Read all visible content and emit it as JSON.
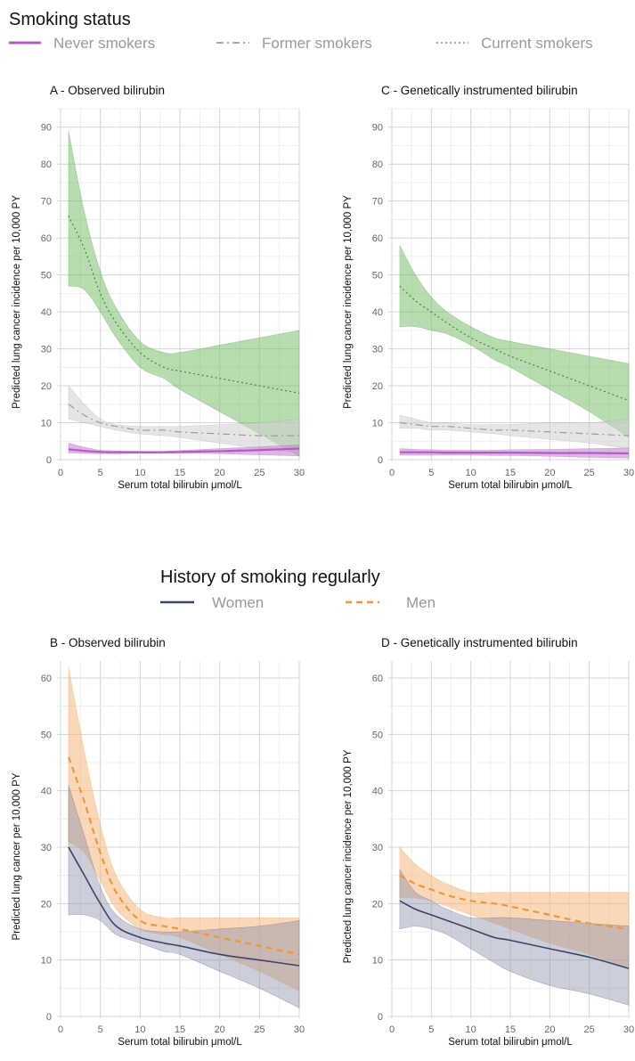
{
  "legend_top": {
    "title": "Smoking status",
    "items": [
      {
        "label": "Never smokers",
        "color": "#b05cc0",
        "dash": "solid"
      },
      {
        "label": "Former smokers",
        "color": "#a8a8a8",
        "dash": "dashdot"
      },
      {
        "label": "Current smokers",
        "color": "#a8a8a8",
        "dash": "dotted"
      }
    ]
  },
  "legend_bottom": {
    "title": "History of smoking regularly",
    "items": [
      {
        "label": "Women",
        "color": "#3d4466",
        "dash": "solid"
      },
      {
        "label": "Men",
        "color": "#f0973a",
        "dash": "dashed"
      }
    ]
  },
  "colors": {
    "never": "#b05cc0",
    "former": "#9a9a9a",
    "current": "#3f8a3a",
    "current_fill": "#7cbf6e",
    "former_fill": "#cfcfcf",
    "never_fill": "#c98fd6",
    "women": "#3d4466",
    "women_fill": "#8d93ad",
    "men": "#f0973a",
    "men_fill": "#f6b77c"
  },
  "chart_data": [
    {
      "type": "line",
      "title": "A - Observed bilirubin",
      "xlabel": "Serum total bilirubin μmol/L",
      "ylabel": "Predicted lung cancer incidence per 10,000 PY",
      "xlim": [
        0,
        30
      ],
      "ylim": [
        0,
        95
      ],
      "xticks": [
        0,
        5,
        10,
        15,
        20,
        25,
        30
      ],
      "yticks": [
        0,
        10,
        20,
        30,
        40,
        50,
        60,
        70,
        80,
        90
      ],
      "grid": true,
      "x": [
        1,
        3,
        5,
        7,
        10,
        13,
        15,
        20,
        25,
        30
      ],
      "series": [
        {
          "name": "Current smokers",
          "dash": "dotted",
          "values": [
            66,
            57,
            45,
            37,
            29,
            25,
            24,
            22,
            20,
            18
          ],
          "lower": [
            47,
            46,
            40,
            33,
            25,
            22,
            19,
            13,
            7,
            1
          ],
          "upper": [
            89,
            67,
            51,
            41,
            32,
            29,
            29,
            31,
            33,
            35
          ]
        },
        {
          "name": "Former smokers",
          "dash": "dashdot",
          "values": [
            15,
            12,
            10,
            9,
            8,
            8,
            7.5,
            7,
            6.5,
            6.5
          ],
          "lower": [
            11,
            10,
            9,
            8,
            7,
            6.5,
            6,
            4.5,
            3,
            2
          ],
          "upper": [
            20,
            15,
            11,
            9.5,
            9,
            9,
            9,
            9.5,
            10,
            11
          ]
        },
        {
          "name": "Never smokers",
          "dash": "solid",
          "values": [
            2.8,
            2.4,
            2.1,
            2.0,
            2.0,
            2.0,
            2.1,
            2.3,
            2.6,
            3.0
          ],
          "lower": [
            1.8,
            1.7,
            1.6,
            1.6,
            1.7,
            1.7,
            1.7,
            1.6,
            1.3,
            1.0
          ],
          "upper": [
            4.5,
            3.4,
            2.6,
            2.4,
            2.3,
            2.3,
            2.5,
            3.0,
            3.5,
            4.0
          ]
        }
      ]
    },
    {
      "type": "line",
      "title": "C - Genetically instrumented bilirubin",
      "xlabel": "Serum total bilirubin μmol/L",
      "ylabel": "Predicted lung cancer incidence per 10,000 PY",
      "xlim": [
        0,
        30
      ],
      "ylim": [
        0,
        95
      ],
      "xticks": [
        0,
        5,
        10,
        15,
        20,
        25,
        30
      ],
      "yticks": [
        0,
        10,
        20,
        30,
        40,
        50,
        60,
        70,
        80,
        90
      ],
      "grid": true,
      "x": [
        1,
        3,
        5,
        7,
        10,
        13,
        15,
        20,
        25,
        30
      ],
      "series": [
        {
          "name": "Current smokers",
          "dash": "dotted",
          "values": [
            47,
            43,
            40,
            37,
            33,
            30,
            28,
            24,
            20,
            16
          ],
          "lower": [
            36,
            36,
            35,
            34,
            31,
            27,
            25,
            19,
            13,
            6
          ],
          "upper": [
            58,
            50,
            44,
            40,
            36,
            33,
            32,
            30,
            28,
            26
          ]
        },
        {
          "name": "Former smokers",
          "dash": "dashdot",
          "values": [
            10,
            9.5,
            9,
            9,
            8.5,
            8,
            8,
            7.5,
            7,
            6.5
          ],
          "lower": [
            8.5,
            8.5,
            8,
            8,
            7.5,
            7,
            6.5,
            5.5,
            4.5,
            3
          ],
          "upper": [
            12,
            11,
            10,
            10,
            9.5,
            9.5,
            9.5,
            10,
            10,
            11
          ]
        },
        {
          "name": "Never smokers",
          "dash": "solid",
          "values": [
            2.0,
            2.0,
            2.0,
            1.9,
            1.9,
            1.9,
            1.9,
            1.8,
            1.8,
            1.7
          ],
          "lower": [
            1.2,
            1.2,
            1.2,
            1.2,
            1.2,
            1.1,
            1.1,
            0.9,
            0.6,
            0.4
          ],
          "upper": [
            3.0,
            2.8,
            2.7,
            2.6,
            2.6,
            2.6,
            2.7,
            2.8,
            3.0,
            3.2
          ]
        }
      ]
    },
    {
      "type": "line",
      "title": "B - Observed bilirubin",
      "xlabel": "Serum total bilirubin μmol/L",
      "ylabel": "Predicted lung cancer per 10,000 PY",
      "xlim": [
        0,
        30
      ],
      "ylim": [
        0,
        63
      ],
      "xticks": [
        0,
        5,
        10,
        15,
        20,
        25,
        30
      ],
      "yticks": [
        0,
        10,
        20,
        30,
        40,
        50,
        60
      ],
      "grid": true,
      "x": [
        1,
        3,
        5,
        7,
        10,
        13,
        15,
        20,
        25,
        30
      ],
      "series": [
        {
          "name": "Men",
          "dash": "dashed",
          "values": [
            46,
            38,
            29,
            22,
            17,
            16,
            15.5,
            14,
            12.5,
            11
          ],
          "lower": [
            31,
            29,
            24,
            19,
            15.5,
            14.5,
            14,
            11,
            8,
            4.5
          ],
          "upper": [
            62,
            47,
            34,
            25,
            19,
            17.5,
            17.5,
            17.5,
            17.5,
            17.5
          ]
        },
        {
          "name": "Women",
          "dash": "solid",
          "values": [
            30,
            25,
            20,
            16,
            14,
            13,
            12.5,
            11,
            10,
            9
          ],
          "lower": [
            18,
            18,
            17,
            14.5,
            13,
            11.5,
            11,
            8,
            5,
            1.5
          ],
          "upper": [
            41,
            32,
            23,
            18,
            15.5,
            15,
            15,
            15.5,
            16,
            17
          ]
        }
      ]
    },
    {
      "type": "line",
      "title": "D - Genetically instrumented bilirubin",
      "xlabel": "Serum total bilirubin μmol/L",
      "ylabel": "Predicted lung cancer incidence per 10,000 PY",
      "xlim": [
        0,
        30
      ],
      "ylim": [
        0,
        63
      ],
      "xticks": [
        0,
        5,
        10,
        15,
        20,
        25,
        30
      ],
      "yticks": [
        0,
        10,
        20,
        30,
        40,
        50,
        60
      ],
      "grid": true,
      "x": [
        1,
        3,
        5,
        7,
        10,
        13,
        15,
        20,
        25,
        30
      ],
      "series": [
        {
          "name": "Men",
          "dash": "dashed",
          "values": [
            25,
            23.5,
            22.5,
            21.5,
            20.5,
            20,
            19.5,
            18,
            16.5,
            15.5
          ],
          "lower": [
            21,
            21,
            20.5,
            19.5,
            18,
            16.5,
            15.5,
            13,
            11,
            8.5
          ],
          "upper": [
            30,
            27,
            25,
            23.5,
            22,
            22,
            22,
            22,
            22,
            22
          ]
        },
        {
          "name": "Women",
          "dash": "solid",
          "values": [
            20.5,
            19,
            18,
            17,
            15.5,
            14,
            13.5,
            12,
            10.5,
            8.5
          ],
          "lower": [
            15.5,
            16,
            15.5,
            14.5,
            12,
            9.5,
            8,
            5.5,
            4,
            2
          ],
          "upper": [
            26,
            22,
            20.5,
            19,
            17.5,
            17.5,
            17.5,
            17,
            16.5,
            16
          ]
        }
      ]
    }
  ]
}
